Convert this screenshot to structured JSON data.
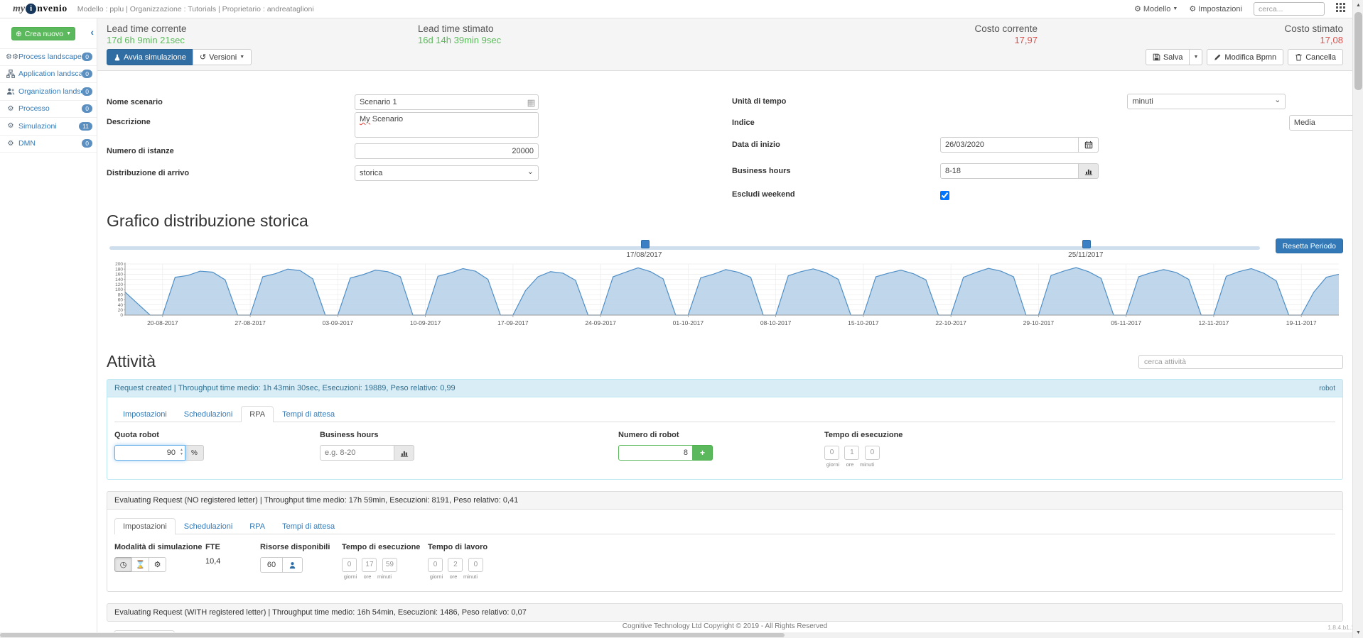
{
  "navbar": {
    "brand_my": "my",
    "brand_i": "i",
    "brand_rest": "nvenio",
    "model_info": "Modello : pplu | Organizzazione : Tutorials | Proprietario : andreataglioni",
    "menu_model": "Modello",
    "menu_settings": "Impostazioni",
    "search_placeholder": "cerca..."
  },
  "sidebar": {
    "create_button": "Crea nuovo",
    "items": [
      {
        "label": "Process landscape",
        "badge": "0"
      },
      {
        "label": "Application landscape",
        "badge": "0"
      },
      {
        "label": "Organization landscape",
        "badge": "0"
      },
      {
        "label": "Processo",
        "badge": "0"
      },
      {
        "label": "Simulazioni",
        "badge": "11"
      },
      {
        "label": "DMN",
        "badge": "0"
      }
    ]
  },
  "metrics": {
    "lead_current_label": "Lead time corrente",
    "lead_current_value": "17d 6h 9min 21sec",
    "lead_estimated_label": "Lead time stimato",
    "lead_estimated_value": "16d 14h 39min 9sec",
    "cost_current_label": "Costo corrente",
    "cost_current_value": "17,97",
    "cost_estimated_label": "Costo stimato",
    "cost_estimated_value": "17,08",
    "good_color": "#5cb85c",
    "bad_color": "#d9534f"
  },
  "toolbar": {
    "run_label": "Avvia simulazione",
    "versions_label": "Versioni",
    "save_label": "Salva",
    "edit_bpmn_label": "Modifica Bpmn",
    "delete_label": "Cancella"
  },
  "form": {
    "name_label": "Nome scenario",
    "name_value": "Scenario 1",
    "desc_label": "Descrizione",
    "desc_value": "My Scenario",
    "desc_first": "My",
    "desc_rest": " Scenario",
    "instances_label": "Numero di istanze",
    "instances_value": "20000",
    "arrival_label": "Distribuzione di arrivo",
    "arrival_value": "storica",
    "time_unit_label": "Unità di tempo",
    "time_unit_value": "minuti",
    "index_label": "Indice",
    "index_value": "Media",
    "start_date_label": "Data di inizio",
    "start_date_value": "26/03/2020",
    "business_hours_label": "Business hours",
    "business_hours_value": "8-18",
    "exclude_weekend_label": "Escludi weekend"
  },
  "chart_section": {
    "title": "Grafico distribuzione storica",
    "range_start": "17/08/2017",
    "range_end": "25/11/2017",
    "reset_button": "Resetta Periodo"
  },
  "chart_data": {
    "type": "area",
    "title": "Grafico distribuzione storica",
    "ylabel": "",
    "xlabel": "",
    "ylim": [
      0,
      200
    ],
    "y_step": 20,
    "grid": true,
    "legend": false,
    "line_color": "#4f8fc7",
    "fill_color": "#b5d0e7",
    "x_tick_labels": [
      "20-08-2017",
      "27-08-2017",
      "03-09-2017",
      "10-09-2017",
      "17-09-2017",
      "24-09-2017",
      "01-10-2017",
      "08-10-2017",
      "15-10-2017",
      "22-10-2017",
      "29-10-2017",
      "05-11-2017",
      "12-11-2017",
      "19-11-2017"
    ],
    "tick_indices": [
      3,
      10,
      17,
      24,
      31,
      38,
      45,
      52,
      59,
      66,
      73,
      80,
      87,
      94
    ],
    "values": [
      90,
      45,
      0,
      0,
      148,
      155,
      172,
      168,
      138,
      0,
      0,
      150,
      162,
      180,
      174,
      142,
      0,
      0,
      145,
      158,
      176,
      170,
      150,
      0,
      0,
      152,
      165,
      182,
      172,
      140,
      0,
      0,
      96,
      150,
      170,
      164,
      136,
      0,
      0,
      150,
      168,
      185,
      170,
      142,
      0,
      0,
      146,
      160,
      178,
      168,
      148,
      0,
      0,
      154,
      170,
      181,
      166,
      140,
      0,
      0,
      150,
      164,
      176,
      162,
      138,
      0,
      0,
      148,
      167,
      183,
      172,
      150,
      0,
      0,
      155,
      172,
      186,
      170,
      144,
      0,
      0,
      150,
      166,
      178,
      167,
      140,
      0,
      0,
      152,
      170,
      182,
      164,
      134,
      0,
      0,
      90,
      148,
      160
    ]
  },
  "activities": {
    "title": "Attività",
    "search_placeholder": "cerca attività",
    "tab_labels": [
      "Impostazioni",
      "Schedulazioni",
      "RPA",
      "Tempi di attesa"
    ],
    "unit_labels": [
      "giorni",
      "ore",
      "minuti"
    ],
    "cards": [
      {
        "header": "Request created | Throughput time medio: 1h 43min 30sec, Esecuzioni: 19889, Peso relativo: 0,99",
        "tag": "robot",
        "active_tab": "RPA",
        "rpa": {
          "quota_label": "Quota robot",
          "quota_value": "90",
          "percent_label": "%",
          "business_hours_label": "Business hours",
          "business_hours_placeholder": "e.g. 8-20",
          "robots_label": "Numero di robot",
          "robots_value": "8",
          "exec_label": "Tempo di esecuzione",
          "exec_days": "0",
          "exec_hours": "1",
          "exec_minutes": "0"
        }
      },
      {
        "header": "Evaluating Request (NO registered letter) | Throughput time medio: 17h 59min, Esecuzioni: 8191, Peso relativo: 0,41",
        "active_tab": "Impostazioni",
        "impostazioni": {
          "mode_label": "Modalità di simulazione",
          "fte_label": "FTE",
          "fte_value": "10,4",
          "resources_label": "Risorse disponibili",
          "resources_value": "60",
          "exec_label": "Tempo di esecuzione",
          "exec_days": "0",
          "exec_hours": "17",
          "exec_minutes": "59",
          "work_label": "Tempo di lavoro",
          "work_days": "0",
          "work_hours": "2",
          "work_minutes": "0"
        }
      },
      {
        "header": "Evaluating Request (WITH registered letter) | Throughput time medio: 16h 54min, Esecuzioni: 1486, Peso relativo: 0,07",
        "active_tab": "Impostazioni"
      }
    ]
  },
  "footer": {
    "copyright": "Cognitive Technology Ltd Copyright © 2019 - All Rights Reserved",
    "version": "1.8.4.b1.1"
  }
}
